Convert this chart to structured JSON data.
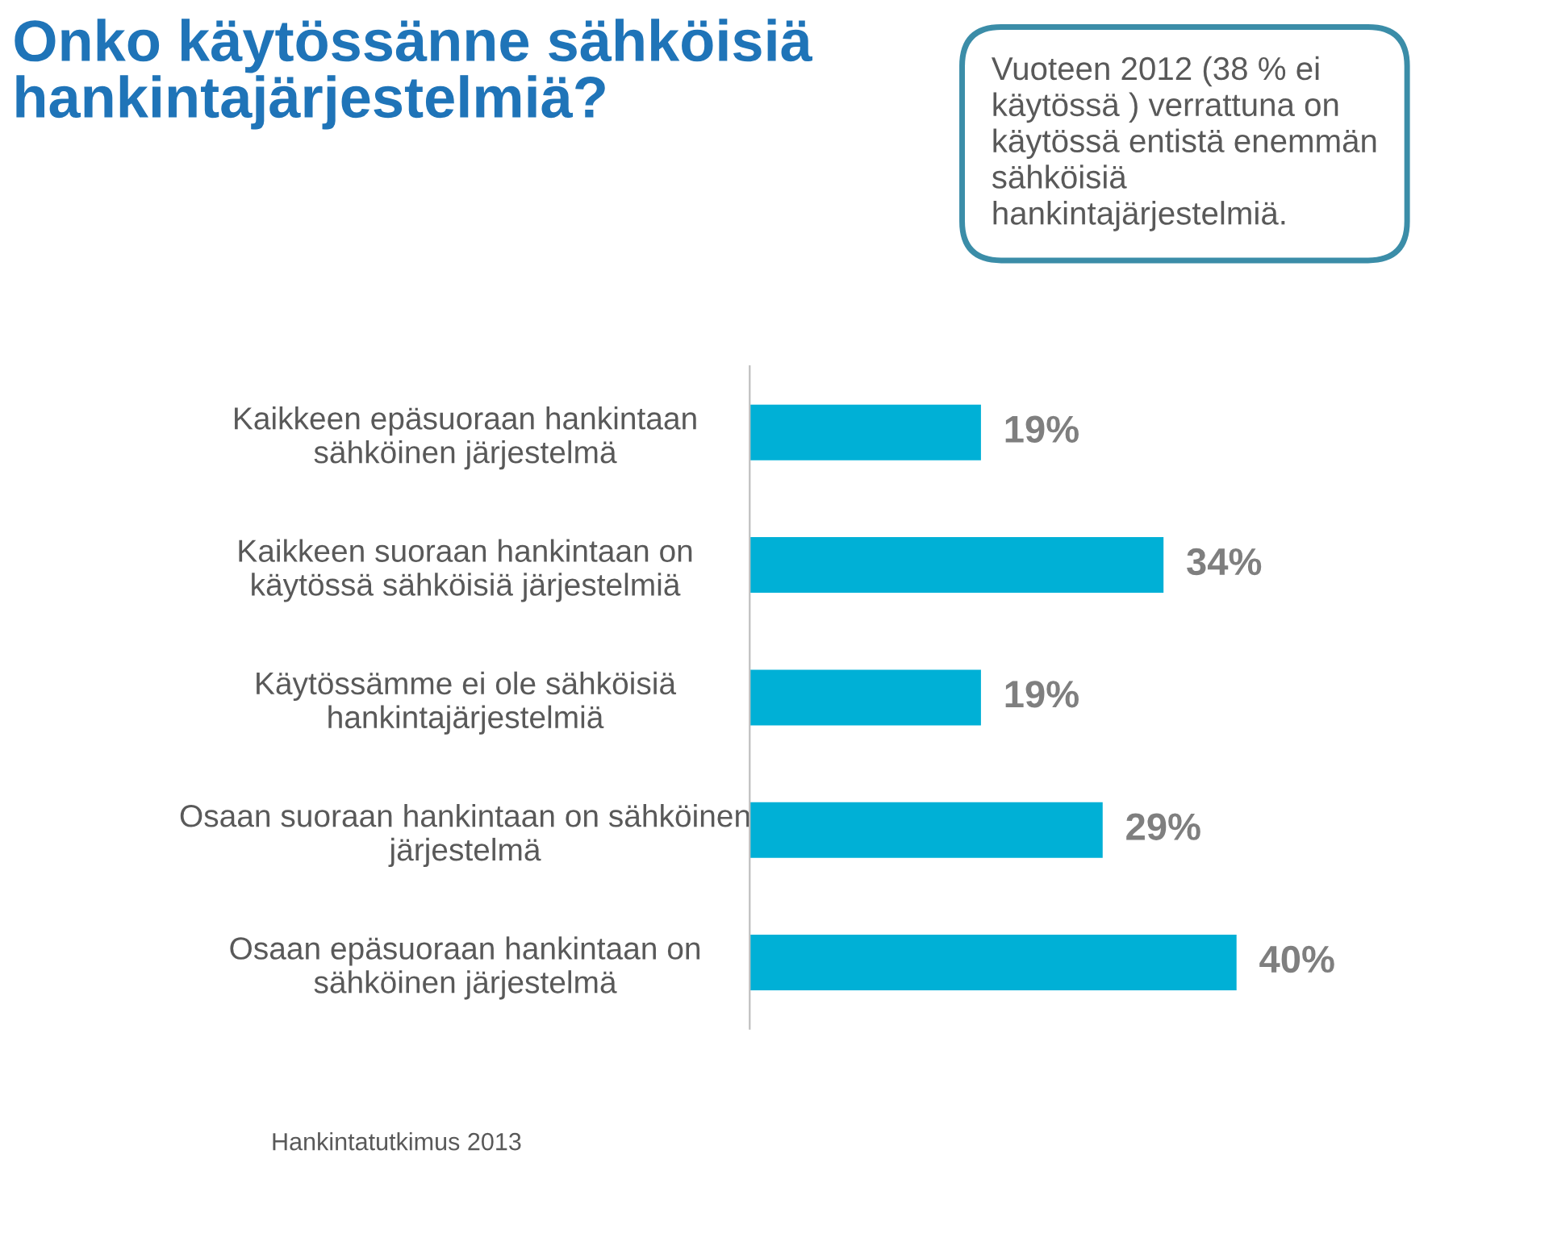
{
  "chart_data": {
    "type": "bar",
    "orientation": "horizontal",
    "title": "Onko käytössänne sähköisiä\nhankintajärjestelmiä?",
    "categories": [
      "Kaikkeen epäsuoraan hankintaan\nsähköinen järjestelmä",
      "Kaikkeen suoraan hankintaan on\nkäytössä sähköisiä järjestelmiä",
      "Käytössämme ei ole sähköisiä\nhankintajärjestelmiä",
      "Osaan suoraan hankintaan on sähköinen\njärjestelmä",
      "Osaan epäsuoraan hankintaan on\nsähköinen järjestelmä"
    ],
    "values": [
      19,
      34,
      19,
      29,
      40
    ],
    "value_labels": [
      "19%",
      "34%",
      "19%",
      "29%",
      "40%"
    ],
    "color": "#00b0d6",
    "tick_labels": "y",
    "grid": false,
    "legend": false,
    "annotations": [
      "Vuoteen 2012 (38 % ei\nkäytössä ) verrattuna on\nkäytössä entistä enemmän\nsähköisiä\nhankintajärjestelmiä.",
      "Hankintatutkimus 2013"
    ]
  }
}
